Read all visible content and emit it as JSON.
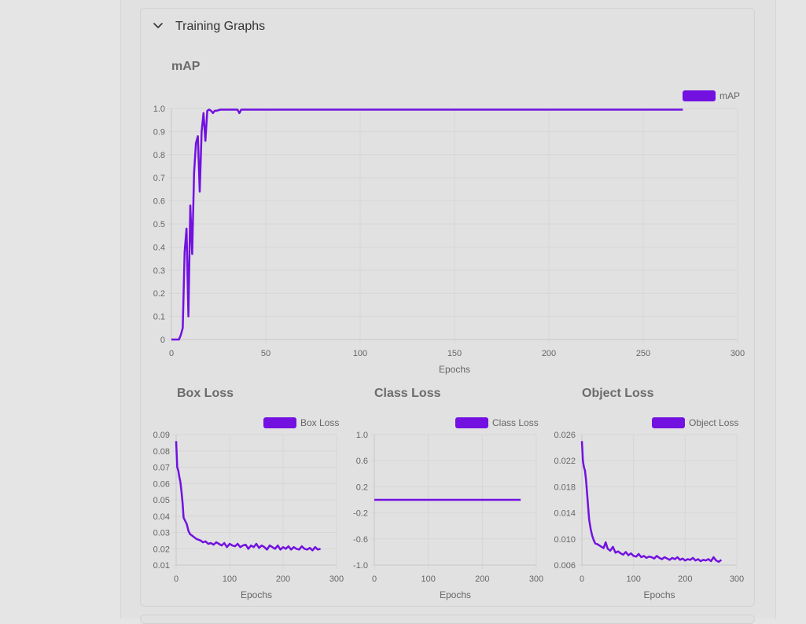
{
  "panel": {
    "title": "Training Graphs",
    "toggle_icon": "chevron-down-icon"
  },
  "colors": {
    "series": "#7211e0",
    "grid": "#d6d6d6",
    "axis_text": "#666666",
    "title_text": "#6b6b6b"
  },
  "chart_data": [
    {
      "id": "map",
      "type": "line",
      "title": "mAP",
      "xlabel": "Epochs",
      "ylabel": "",
      "legend": "top-right",
      "grid": true,
      "xlim": [
        0,
        300
      ],
      "ylim": [
        0,
        1.0
      ],
      "xticks": [
        "0",
        "50",
        "100",
        "150",
        "200",
        "250",
        "300"
      ],
      "yticks": [
        "0",
        "0.1",
        "0.2",
        "0.3",
        "0.4",
        "0.5",
        "0.6",
        "0.7",
        "0.8",
        "0.9",
        "1.0"
      ],
      "series": [
        {
          "name": "mAP",
          "x": [
            0,
            4,
            5,
            6,
            7,
            8,
            9,
            10,
            11,
            12,
            13,
            14,
            15,
            16,
            17,
            18,
            19,
            20,
            21,
            22,
            23,
            24,
            25,
            26,
            28,
            30,
            35,
            36,
            37,
            38,
            40,
            50,
            100,
            150,
            200,
            250,
            271
          ],
          "y": [
            0.0,
            0.0,
            0.02,
            0.05,
            0.38,
            0.48,
            0.1,
            0.58,
            0.37,
            0.72,
            0.85,
            0.88,
            0.64,
            0.9,
            0.98,
            0.86,
            0.99,
            0.995,
            0.99,
            0.98,
            0.99,
            0.99,
            0.993,
            0.995,
            0.995,
            0.995,
            0.995,
            0.98,
            0.995,
            0.995,
            0.995,
            0.995,
            0.995,
            0.995,
            0.995,
            0.995,
            0.995
          ]
        }
      ]
    },
    {
      "id": "box",
      "type": "line",
      "title": "Box Loss",
      "xlabel": "Epochs",
      "ylabel": "",
      "legend": "top-right",
      "grid": true,
      "xlim": [
        0,
        300
      ],
      "ylim": [
        0.01,
        0.09
      ],
      "xticks": [
        "0",
        "100",
        "200",
        "300"
      ],
      "yticks": [
        "0.01",
        "0.02",
        "0.03",
        "0.04",
        "0.05",
        "0.06",
        "0.07",
        "0.08",
        "0.09"
      ],
      "series": [
        {
          "name": "Box Loss",
          "x": [
            0,
            2,
            4,
            6,
            8,
            10,
            12,
            14,
            17,
            20,
            23,
            26,
            30,
            34,
            38,
            42,
            46,
            50,
            55,
            60,
            65,
            70,
            75,
            80,
            85,
            90,
            95,
            100,
            105,
            110,
            115,
            120,
            125,
            130,
            135,
            140,
            145,
            150,
            155,
            160,
            165,
            170,
            175,
            180,
            185,
            190,
            195,
            200,
            205,
            210,
            215,
            220,
            225,
            230,
            235,
            240,
            245,
            250,
            255,
            260,
            265,
            270
          ],
          "y": [
            0.086,
            0.07,
            0.068,
            0.064,
            0.061,
            0.055,
            0.048,
            0.039,
            0.037,
            0.035,
            0.031,
            0.029,
            0.028,
            0.027,
            0.026,
            0.0255,
            0.025,
            0.024,
            0.0245,
            0.023,
            0.0235,
            0.0225,
            0.024,
            0.023,
            0.022,
            0.0235,
            0.021,
            0.023,
            0.022,
            0.0215,
            0.023,
            0.021,
            0.022,
            0.0225,
            0.02,
            0.022,
            0.021,
            0.023,
            0.0205,
            0.022,
            0.021,
            0.0195,
            0.022,
            0.021,
            0.02,
            0.022,
            0.0195,
            0.021,
            0.02,
            0.0215,
            0.0195,
            0.021,
            0.02,
            0.0195,
            0.0215,
            0.02,
            0.0195,
            0.0205,
            0.019,
            0.021,
            0.0195,
            0.02
          ]
        }
      ]
    },
    {
      "id": "class",
      "type": "line",
      "title": "Class Loss",
      "xlabel": "Epochs",
      "ylabel": "",
      "legend": "top-right",
      "grid": true,
      "xlim": [
        0,
        300
      ],
      "ylim": [
        -1.0,
        1.0
      ],
      "xticks": [
        "0",
        "100",
        "200",
        "300"
      ],
      "yticks": [
        "1.0",
        "0.6",
        "0.2",
        "-0.2",
        "-0.6",
        "-1.0"
      ],
      "series": [
        {
          "name": "Class Loss",
          "x": [
            0,
            271
          ],
          "y": [
            0,
            0
          ]
        }
      ]
    },
    {
      "id": "object",
      "type": "line",
      "title": "Object Loss",
      "xlabel": "Epochs",
      "ylabel": "",
      "legend": "top-right",
      "grid": true,
      "xlim": [
        0,
        300
      ],
      "ylim": [
        0.006,
        0.026
      ],
      "xticks": [
        "0",
        "100",
        "200",
        "300"
      ],
      "yticks": [
        "0.026",
        "0.022",
        "0.018",
        "0.014",
        "0.010",
        "0.006"
      ],
      "series": [
        {
          "name": "Object Loss",
          "x": [
            0,
            2,
            4,
            6,
            8,
            10,
            12,
            14,
            17,
            20,
            23,
            26,
            30,
            34,
            38,
            42,
            46,
            50,
            55,
            60,
            65,
            70,
            75,
            80,
            85,
            90,
            95,
            100,
            105,
            110,
            115,
            120,
            125,
            130,
            135,
            140,
            145,
            150,
            155,
            160,
            165,
            170,
            175,
            180,
            185,
            190,
            195,
            200,
            205,
            210,
            215,
            220,
            225,
            230,
            235,
            240,
            245,
            250,
            255,
            260,
            265,
            270
          ],
          "y": [
            0.025,
            0.022,
            0.021,
            0.0205,
            0.019,
            0.017,
            0.015,
            0.013,
            0.0115,
            0.0105,
            0.0098,
            0.0093,
            0.0092,
            0.009,
            0.0088,
            0.0086,
            0.0095,
            0.0085,
            0.0082,
            0.0088,
            0.0079,
            0.0081,
            0.0078,
            0.0076,
            0.008,
            0.0075,
            0.0078,
            0.0074,
            0.0073,
            0.0077,
            0.0072,
            0.0074,
            0.0071,
            0.0073,
            0.0072,
            0.007,
            0.0074,
            0.0071,
            0.0069,
            0.0072,
            0.007,
            0.0068,
            0.0071,
            0.0069,
            0.0072,
            0.0068,
            0.007,
            0.0067,
            0.0069,
            0.0068,
            0.0071,
            0.0067,
            0.0069,
            0.0066,
            0.0068,
            0.0067,
            0.0069,
            0.0066,
            0.0072,
            0.0067,
            0.0065,
            0.0068
          ]
        }
      ]
    }
  ]
}
